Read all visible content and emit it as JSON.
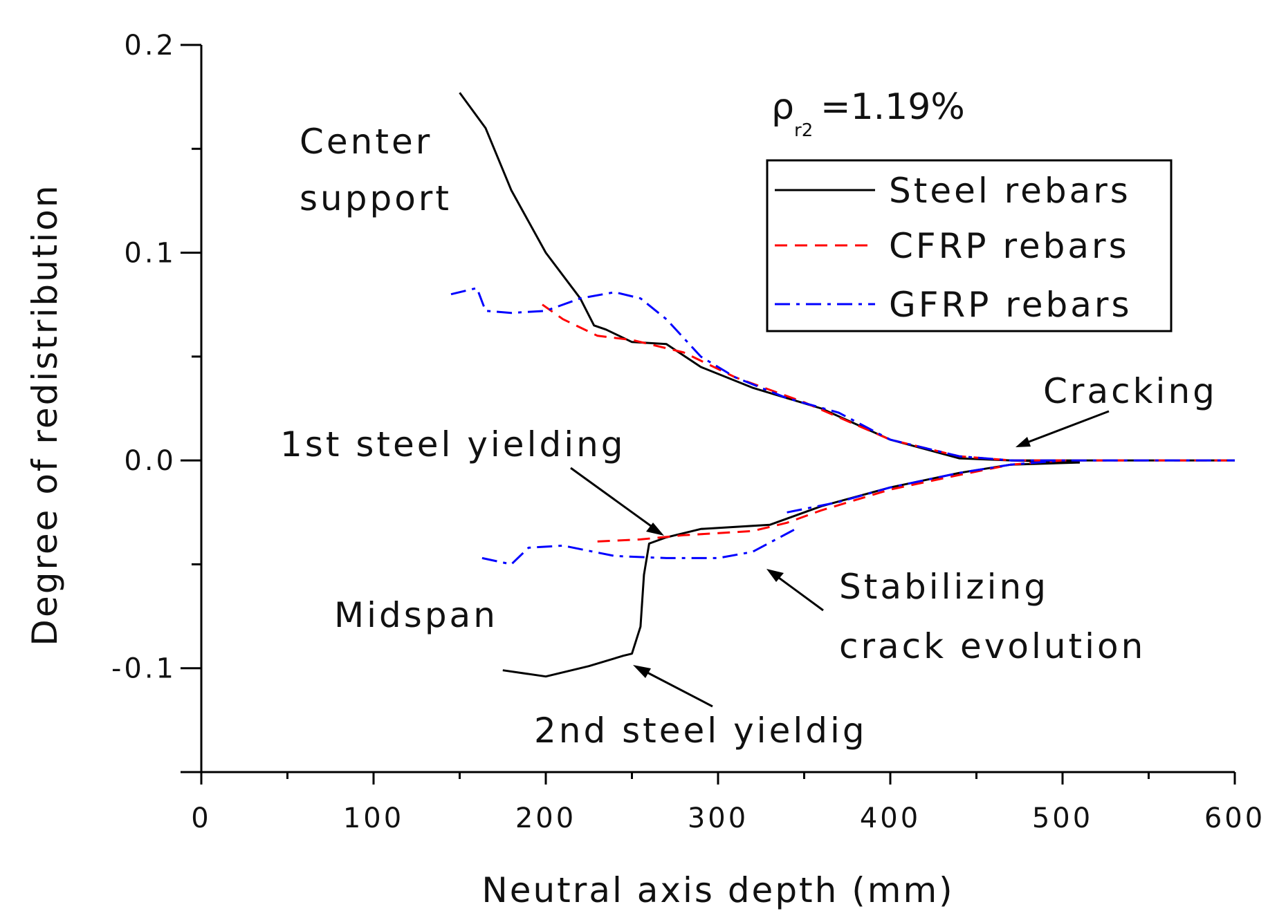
{
  "chart_data": {
    "type": "line",
    "title": "",
    "xlabel": "Neutral axis depth (mm)",
    "ylabel": "Degree of redistribution",
    "xlim": [
      0,
      600
    ],
    "ylim": [
      -0.15,
      0.2
    ],
    "xticks": [
      0,
      100,
      200,
      300,
      400,
      500,
      600
    ],
    "xtick_labels": [
      "0",
      "100",
      "200",
      "300",
      "400",
      "500",
      "600"
    ],
    "yticks": [
      -0.1,
      0.0,
      0.1,
      0.2
    ],
    "ytick_labels": [
      "-0.1",
      "0.0",
      "0.1",
      "0.2"
    ],
    "grid": false,
    "legend_position": "top-right",
    "reinforcement_ratio": {
      "symbol": "ρ",
      "subscript": "r2",
      "value": "=1.19%"
    },
    "series": [
      {
        "name": "Steel rebars",
        "color": "#000000",
        "dash": "solid",
        "segments": [
          [
            [
              150,
              0.177
            ],
            [
              165,
              0.16
            ],
            [
              180,
              0.13
            ],
            [
              200,
              0.1
            ],
            [
              220,
              0.078
            ],
            [
              228,
              0.065
            ],
            [
              235,
              0.063
            ],
            [
              250,
              0.057
            ],
            [
              270,
              0.056
            ],
            [
              290,
              0.045
            ],
            [
              320,
              0.035
            ],
            [
              360,
              0.025
            ],
            [
              400,
              0.01
            ],
            [
              440,
              0.001
            ],
            [
              470,
              0.0
            ],
            [
              510,
              -0.001
            ]
          ],
          [
            [
              175,
              -0.101
            ],
            [
              200,
              -0.104
            ],
            [
              225,
              -0.099
            ],
            [
              245,
              -0.094
            ],
            [
              250,
              -0.093
            ],
            [
              255,
              -0.08
            ],
            [
              257,
              -0.055
            ],
            [
              260,
              -0.04
            ],
            [
              270,
              -0.037
            ],
            [
              290,
              -0.033
            ],
            [
              330,
              -0.031
            ],
            [
              360,
              -0.022
            ],
            [
              400,
              -0.013
            ],
            [
              440,
              -0.006
            ],
            [
              470,
              -0.002
            ],
            [
              510,
              -0.001
            ]
          ],
          [
            [
              470,
              0.0
            ],
            [
              600,
              0.0
            ]
          ]
        ]
      },
      {
        "name": "CFRP rebars",
        "color": "#ff0000",
        "dash": "dashed",
        "segments": [
          [
            [
              198,
              0.075
            ],
            [
              210,
              0.068
            ],
            [
              230,
              0.06
            ],
            [
              250,
              0.058
            ],
            [
              280,
              0.052
            ],
            [
              310,
              0.04
            ],
            [
              350,
              0.028
            ],
            [
              400,
              0.01
            ],
            [
              440,
              0.002
            ],
            [
              470,
              0.0
            ],
            [
              600,
              0.0
            ]
          ],
          [
            [
              230,
              -0.039
            ],
            [
              255,
              -0.038
            ],
            [
              280,
              -0.036
            ],
            [
              320,
              -0.034
            ],
            [
              340,
              -0.03
            ],
            [
              360,
              -0.024
            ],
            [
              400,
              -0.014
            ],
            [
              440,
              -0.007
            ],
            [
              470,
              -0.002
            ],
            [
              500,
              0.0
            ]
          ]
        ]
      },
      {
        "name": "GFRP rebars",
        "color": "#0000ff",
        "dash": "dash-dot",
        "segments": [
          [
            [
              145,
              0.08
            ],
            [
              160,
              0.083
            ],
            [
              165,
              0.072
            ],
            [
              180,
              0.071
            ],
            [
              200,
              0.072
            ],
            [
              220,
              0.078
            ],
            [
              240,
              0.081
            ],
            [
              255,
              0.078
            ],
            [
              270,
              0.068
            ],
            [
              290,
              0.05
            ],
            [
              310,
              0.04
            ],
            [
              340,
              0.03
            ],
            [
              370,
              0.023
            ],
            [
              400,
              0.01
            ],
            [
              440,
              0.002
            ],
            [
              470,
              0.0
            ],
            [
              600,
              0.0
            ]
          ],
          [
            [
              163,
              -0.047
            ],
            [
              180,
              -0.05
            ],
            [
              190,
              -0.042
            ],
            [
              210,
              -0.041
            ],
            [
              240,
              -0.046
            ],
            [
              270,
              -0.047
            ],
            [
              300,
              -0.047
            ],
            [
              320,
              -0.044
            ],
            [
              345,
              -0.033
            ]
          ],
          [
            [
              340,
              -0.025
            ],
            [
              370,
              -0.02
            ],
            [
              400,
              -0.013
            ],
            [
              440,
              -0.006
            ],
            [
              470,
              -0.002
            ],
            [
              500,
              0.0
            ]
          ]
        ]
      }
    ],
    "annotations": [
      {
        "lines": [
          "Center",
          "support"
        ]
      },
      {
        "lines": [
          "1st steel yielding"
        ]
      },
      {
        "lines": [
          "Midspan"
        ]
      },
      {
        "lines": [
          "Stabilizing",
          "crack evolution"
        ]
      },
      {
        "lines": [
          "2nd steel yieldig"
        ]
      },
      {
        "lines": [
          "Cracking"
        ]
      }
    ]
  }
}
